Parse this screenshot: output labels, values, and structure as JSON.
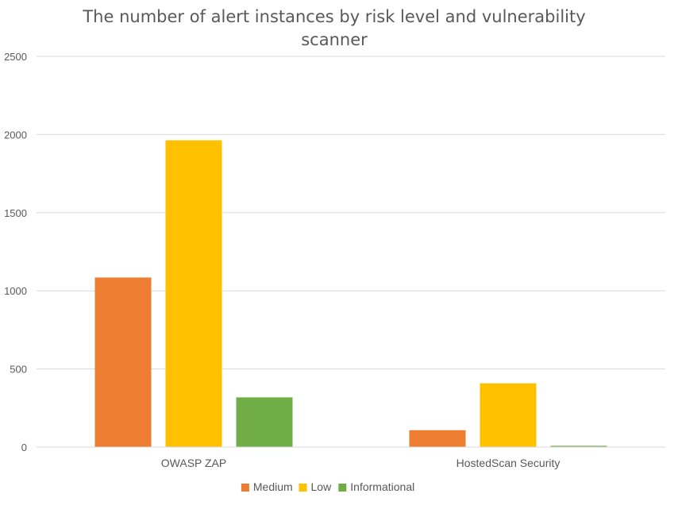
{
  "chart_data": {
    "type": "bar",
    "title_lines": [
      "The number of alert instances by risk level and vulnerability",
      "scanner"
    ],
    "categories": [
      "OWASP ZAP",
      "HostedScan Security"
    ],
    "series": [
      {
        "name": "Medium",
        "color": "#ED7D31",
        "values": [
          1085,
          108
        ]
      },
      {
        "name": "Low",
        "color": "#FFC000",
        "values": [
          1963,
          408
        ]
      },
      {
        "name": "Informational",
        "color": "#70AD47",
        "values": [
          318,
          8
        ]
      }
    ],
    "y_ticks": [
      "0",
      "500",
      "1000",
      "1500",
      "2000",
      "2500"
    ],
    "ylim": [
      0,
      2500
    ],
    "grid": true,
    "legend_position": "bottom"
  }
}
